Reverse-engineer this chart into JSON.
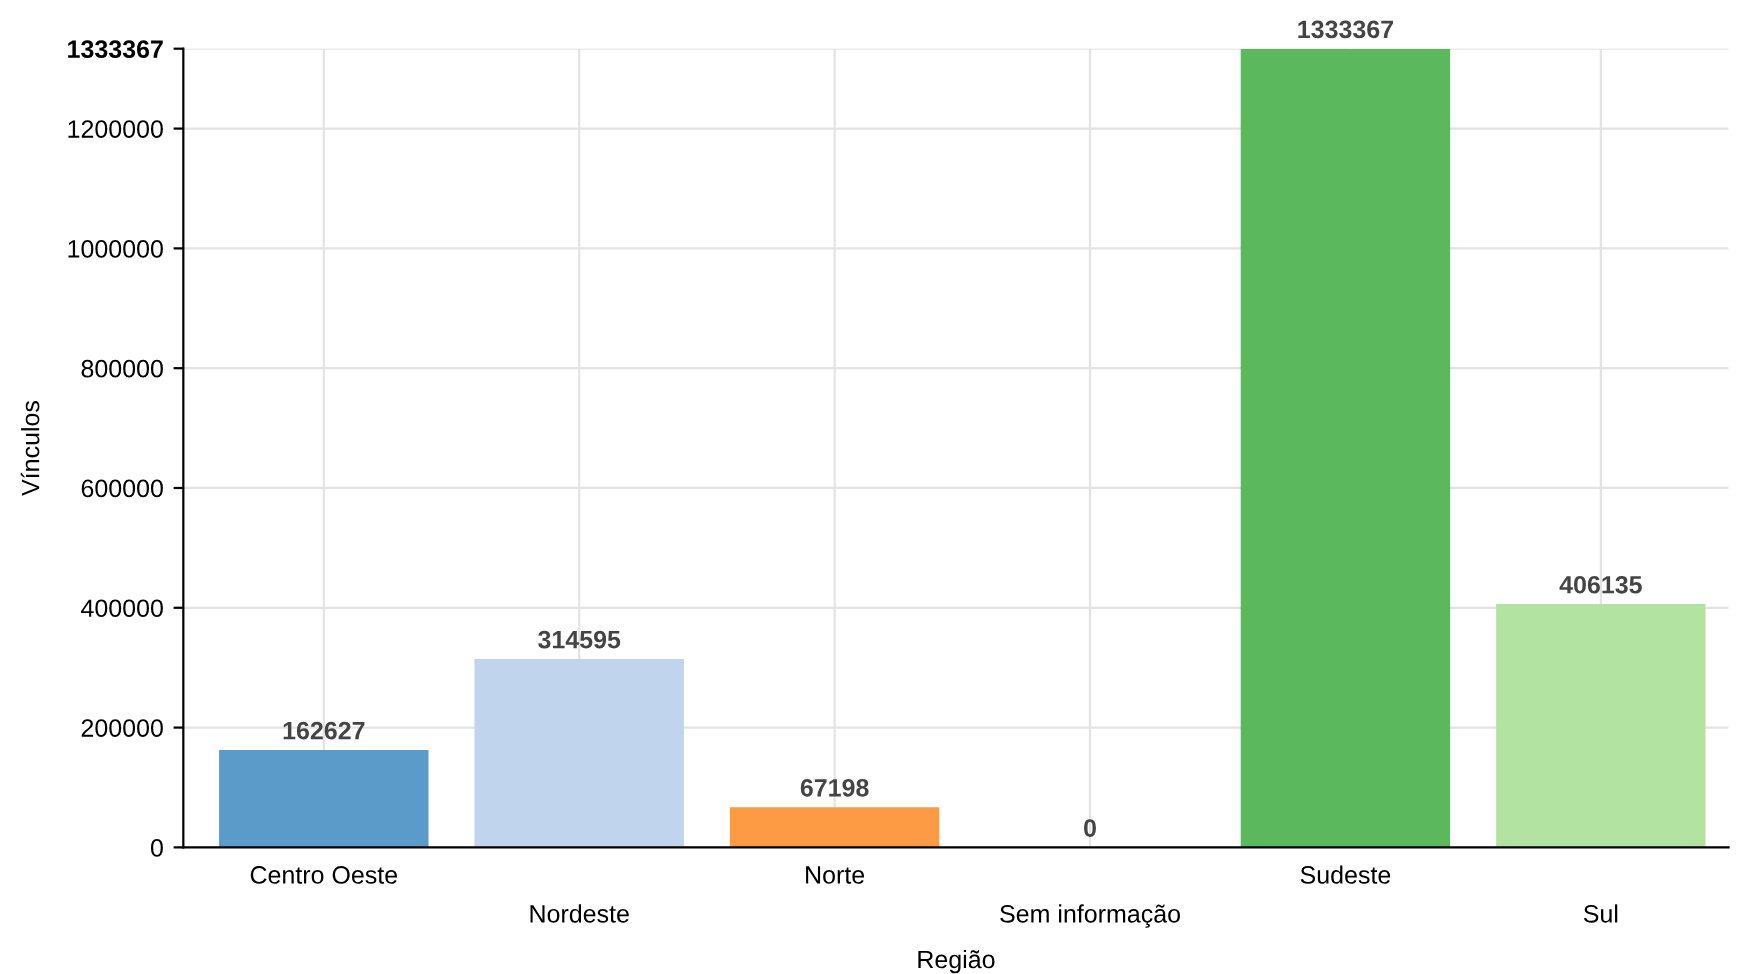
{
  "chart_data": {
    "type": "bar",
    "xlabel": "Região",
    "ylabel": "Vínculos",
    "categories": [
      "Centro Oeste",
      "Nordeste",
      "Norte",
      "Sem informação",
      "Sudeste",
      "Sul"
    ],
    "values": [
      162627,
      314595,
      67198,
      0,
      1333367,
      406135
    ],
    "colors": [
      "#5b9bc9",
      "#c0d4ee",
      "#fd9a44",
      "#ffc48f",
      "#5cb85c",
      "#b2e3a1"
    ],
    "ylim": [
      0,
      1333367
    ],
    "yticks": [
      0,
      200000,
      400000,
      600000,
      800000,
      1000000,
      1200000,
      1333367
    ],
    "grid": true,
    "data_labels": true
  }
}
